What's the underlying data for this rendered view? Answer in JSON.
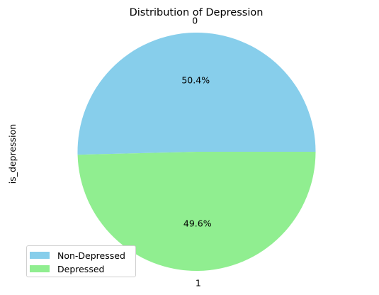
{
  "chart_data": {
    "type": "pie",
    "title": "Distribution of Depression",
    "ylabel": "is_depression",
    "categories": [
      "0",
      "1"
    ],
    "values": [
      50.4,
      49.6
    ],
    "labels": [
      "50.4%",
      "49.6%"
    ],
    "colors": [
      "#87CEEB",
      "#90EE90"
    ],
    "legend": {
      "entries": [
        "Non-Depressed",
        "Depressed"
      ],
      "placement": "lower-left"
    },
    "start_angle_deg": 0,
    "direction": "counterclockwise"
  }
}
